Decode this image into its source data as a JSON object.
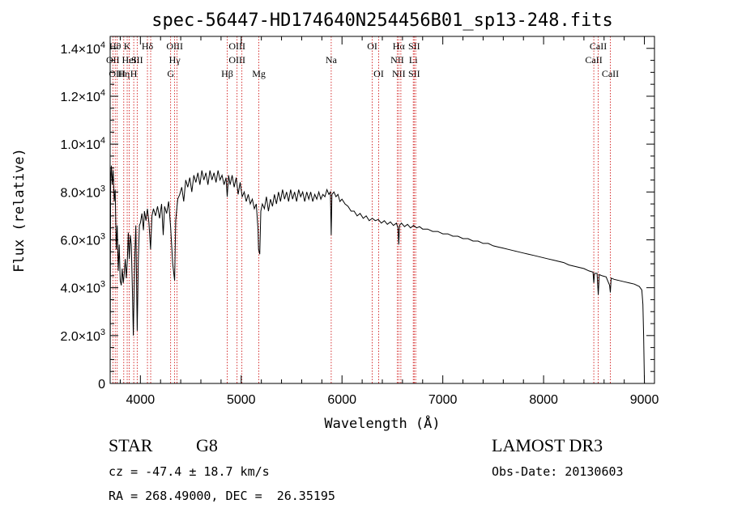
{
  "chart_data": {
    "type": "line",
    "title": "spec-56447-HD174640N254456B01_sp13-248.fits",
    "xlabel": "Wavelength (Å)",
    "ylabel": "Flux (relative)",
    "xlim": [
      3700,
      9100
    ],
    "ylim": [
      0,
      14500
    ],
    "x_ticks": [
      4000,
      5000,
      6000,
      7000,
      8000,
      9000
    ],
    "y_ticks": [
      {
        "value": 0,
        "mantissa": "0",
        "exp": ""
      },
      {
        "value": 2000,
        "mantissa": "2.0×10",
        "exp": "3"
      },
      {
        "value": 4000,
        "mantissa": "4.0×10",
        "exp": "3"
      },
      {
        "value": 6000,
        "mantissa": "6.0×10",
        "exp": "3"
      },
      {
        "value": 8000,
        "mantissa": "8.0×10",
        "exp": "3"
      },
      {
        "value": 10000,
        "mantissa": "1.0×10",
        "exp": "4"
      },
      {
        "value": 12000,
        "mantissa": "1.2×10",
        "exp": "4"
      },
      {
        "value": 14000,
        "mantissa": "1.4×10",
        "exp": "4"
      }
    ],
    "series": [
      {
        "name": "spectrum",
        "points": [
          [
            3700,
            0
          ],
          [
            3705,
            8500
          ],
          [
            3712,
            9100
          ],
          [
            3720,
            8300
          ],
          [
            3730,
            8900
          ],
          [
            3740,
            7600
          ],
          [
            3750,
            8100
          ],
          [
            3760,
            5600
          ],
          [
            3770,
            6600
          ],
          [
            3780,
            4700
          ],
          [
            3790,
            5800
          ],
          [
            3800,
            4300
          ],
          [
            3810,
            4100
          ],
          [
            3820,
            4800
          ],
          [
            3830,
            4200
          ],
          [
            3840,
            4600
          ],
          [
            3850,
            5200
          ],
          [
            3860,
            4400
          ],
          [
            3870,
            5100
          ],
          [
            3880,
            6300
          ],
          [
            3890,
            5200
          ],
          [
            3900,
            6200
          ],
          [
            3910,
            5800
          ],
          [
            3920,
            4000
          ],
          [
            3930,
            2000
          ],
          [
            3945,
            5400
          ],
          [
            3955,
            6600
          ],
          [
            3968,
            2200
          ],
          [
            3980,
            5200
          ],
          [
            3990,
            6600
          ],
          [
            4000,
            6700
          ],
          [
            4015,
            7100
          ],
          [
            4030,
            6400
          ],
          [
            4040,
            7200
          ],
          [
            4055,
            6800
          ],
          [
            4070,
            7300
          ],
          [
            4085,
            6700
          ],
          [
            4101,
            5600
          ],
          [
            4115,
            7000
          ],
          [
            4130,
            7300
          ],
          [
            4150,
            7000
          ],
          [
            4170,
            7400
          ],
          [
            4190,
            6900
          ],
          [
            4210,
            7500
          ],
          [
            4226,
            6200
          ],
          [
            4240,
            7400
          ],
          [
            4260,
            7100
          ],
          [
            4280,
            7600
          ],
          [
            4300,
            6500
          ],
          [
            4320,
            5000
          ],
          [
            4340,
            4300
          ],
          [
            4350,
            6800
          ],
          [
            4370,
            7700
          ],
          [
            4390,
            7900
          ],
          [
            4410,
            8200
          ],
          [
            4430,
            7600
          ],
          [
            4450,
            8500
          ],
          [
            4470,
            8200
          ],
          [
            4490,
            8600
          ],
          [
            4510,
            8000
          ],
          [
            4530,
            8700
          ],
          [
            4550,
            8400
          ],
          [
            4570,
            8800
          ],
          [
            4590,
            8300
          ],
          [
            4610,
            8900
          ],
          [
            4630,
            8500
          ],
          [
            4650,
            8800
          ],
          [
            4670,
            8300
          ],
          [
            4690,
            8900
          ],
          [
            4710,
            8500
          ],
          [
            4730,
            8800
          ],
          [
            4750,
            8400
          ],
          [
            4770,
            8900
          ],
          [
            4790,
            8500
          ],
          [
            4810,
            8700
          ],
          [
            4830,
            8300
          ],
          [
            4850,
            8600
          ],
          [
            4861,
            7800
          ],
          [
            4875,
            8700
          ],
          [
            4890,
            8300
          ],
          [
            4910,
            8700
          ],
          [
            4930,
            8200
          ],
          [
            4950,
            8600
          ],
          [
            4970,
            7900
          ],
          [
            4990,
            8400
          ],
          [
            5010,
            7800
          ],
          [
            5030,
            8000
          ],
          [
            5050,
            7600
          ],
          [
            5070,
            7900
          ],
          [
            5090,
            7500
          ],
          [
            5110,
            7700
          ],
          [
            5130,
            7300
          ],
          [
            5150,
            7500
          ],
          [
            5167,
            6400
          ],
          [
            5172,
            5600
          ],
          [
            5184,
            5400
          ],
          [
            5195,
            7200
          ],
          [
            5210,
            7500
          ],
          [
            5230,
            7300
          ],
          [
            5250,
            7800
          ],
          [
            5270,
            7200
          ],
          [
            5290,
            7700
          ],
          [
            5310,
            7400
          ],
          [
            5330,
            7900
          ],
          [
            5350,
            7500
          ],
          [
            5370,
            8000
          ],
          [
            5390,
            7600
          ],
          [
            5410,
            8100
          ],
          [
            5430,
            7700
          ],
          [
            5450,
            8000
          ],
          [
            5470,
            7600
          ],
          [
            5490,
            8100
          ],
          [
            5510,
            7700
          ],
          [
            5530,
            8000
          ],
          [
            5550,
            7600
          ],
          [
            5570,
            8100
          ],
          [
            5590,
            7800
          ],
          [
            5610,
            8000
          ],
          [
            5630,
            7600
          ],
          [
            5650,
            8000
          ],
          [
            5670,
            7700
          ],
          [
            5690,
            8000
          ],
          [
            5710,
            7600
          ],
          [
            5730,
            7900
          ],
          [
            5750,
            7700
          ],
          [
            5770,
            8000
          ],
          [
            5790,
            7700
          ],
          [
            5810,
            7900
          ],
          [
            5830,
            7800
          ],
          [
            5850,
            8100
          ],
          [
            5870,
            7900
          ],
          [
            5885,
            8000
          ],
          [
            5893,
            6200
          ],
          [
            5900,
            7900
          ],
          [
            5920,
            8000
          ],
          [
            5940,
            7800
          ],
          [
            5960,
            7900
          ],
          [
            5980,
            7600
          ],
          [
            6000,
            7700
          ],
          [
            6030,
            7500
          ],
          [
            6060,
            7400
          ],
          [
            6090,
            7200
          ],
          [
            6120,
            7200
          ],
          [
            6150,
            7000
          ],
          [
            6180,
            7100
          ],
          [
            6210,
            6900
          ],
          [
            6240,
            7000
          ],
          [
            6270,
            6800
          ],
          [
            6300,
            6900
          ],
          [
            6330,
            6800
          ],
          [
            6360,
            6850
          ],
          [
            6390,
            6700
          ],
          [
            6420,
            6800
          ],
          [
            6450,
            6650
          ],
          [
            6480,
            6750
          ],
          [
            6510,
            6600
          ],
          [
            6540,
            6700
          ],
          [
            6555,
            6500
          ],
          [
            6563,
            5800
          ],
          [
            6570,
            6600
          ],
          [
            6590,
            6700
          ],
          [
            6620,
            6550
          ],
          [
            6650,
            6650
          ],
          [
            6680,
            6500
          ],
          [
            6710,
            6600
          ],
          [
            6740,
            6500
          ],
          [
            6770,
            6550
          ],
          [
            6800,
            6450
          ],
          [
            6850,
            6450
          ],
          [
            6900,
            6350
          ],
          [
            6950,
            6350
          ],
          [
            7000,
            6250
          ],
          [
            7050,
            6250
          ],
          [
            7100,
            6150
          ],
          [
            7150,
            6150
          ],
          [
            7200,
            6050
          ],
          [
            7250,
            6050
          ],
          [
            7300,
            5950
          ],
          [
            7350,
            5950
          ],
          [
            7400,
            5850
          ],
          [
            7450,
            5850
          ],
          [
            7500,
            5750
          ],
          [
            7550,
            5700
          ],
          [
            7600,
            5650
          ],
          [
            7650,
            5600
          ],
          [
            7700,
            5550
          ],
          [
            7750,
            5500
          ],
          [
            7800,
            5450
          ],
          [
            7850,
            5400
          ],
          [
            7900,
            5350
          ],
          [
            7950,
            5300
          ],
          [
            8000,
            5250
          ],
          [
            8050,
            5200
          ],
          [
            8100,
            5150
          ],
          [
            8150,
            5100
          ],
          [
            8200,
            5050
          ],
          [
            8250,
            4950
          ],
          [
            8300,
            4900
          ],
          [
            8350,
            4850
          ],
          [
            8400,
            4800
          ],
          [
            8450,
            4700
          ],
          [
            8490,
            4650
          ],
          [
            8498,
            4200
          ],
          [
            8505,
            4600
          ],
          [
            8530,
            4600
          ],
          [
            8542,
            3700
          ],
          [
            8552,
            4550
          ],
          [
            8580,
            4500
          ],
          [
            8620,
            4450
          ],
          [
            8655,
            4100
          ],
          [
            8662,
            3800
          ],
          [
            8670,
            4400
          ],
          [
            8700,
            4350
          ],
          [
            8750,
            4300
          ],
          [
            8800,
            4250
          ],
          [
            8850,
            4200
          ],
          [
            8900,
            4150
          ],
          [
            8950,
            4050
          ],
          [
            8975,
            3900
          ],
          [
            8985,
            3300
          ],
          [
            8992,
            2000
          ],
          [
            8997,
            800
          ],
          [
            9000,
            0
          ]
        ]
      }
    ],
    "lines": [
      {
        "x": 3727,
        "labels": [
          "OII"
        ],
        "rows": [
          1
        ]
      },
      {
        "x": 3750,
        "labels": [
          "Hθ"
        ],
        "rows": [
          0
        ]
      },
      {
        "x": 3770,
        "labels": [
          "OIII"
        ],
        "rows": [
          2
        ]
      },
      {
        "x": 3835,
        "labels": [
          "Hη"
        ],
        "rows": [
          2
        ]
      },
      {
        "x": 3869,
        "labels": [
          "K"
        ],
        "rows": [
          0
        ]
      },
      {
        "x": 3889,
        "labels": [
          "HeI"
        ],
        "rows": [
          1
        ]
      },
      {
        "x": 3934,
        "labels": [
          "H"
        ],
        "rows": [
          2
        ]
      },
      {
        "x": 3968,
        "labels": [
          "SII"
        ],
        "rows": [
          1
        ]
      },
      {
        "x": 4070,
        "labels": [
          "Hδ"
        ],
        "rows": [
          0
        ]
      },
      {
        "x": 4102,
        "labels": [],
        "rows": []
      },
      {
        "x": 4300,
        "labels": [
          "G"
        ],
        "rows": [
          2
        ]
      },
      {
        "x": 4340,
        "labels": [
          "OIII",
          "Hγ"
        ],
        "rows": [
          0,
          1
        ]
      },
      {
        "x": 4363,
        "labels": [],
        "rows": []
      },
      {
        "x": 4861,
        "labels": [
          "Hβ"
        ],
        "rows": [
          2
        ]
      },
      {
        "x": 4959,
        "labels": [
          "OIII",
          "OIII"
        ],
        "rows": [
          0,
          1
        ]
      },
      {
        "x": 5007,
        "labels": [],
        "rows": []
      },
      {
        "x": 5175,
        "labels": [
          "Mg"
        ],
        "rows": [
          2
        ]
      },
      {
        "x": 5893,
        "labels": [
          "Na"
        ],
        "rows": [
          1
        ]
      },
      {
        "x": 6300,
        "labels": [
          "OI"
        ],
        "rows": [
          0
        ]
      },
      {
        "x": 6364,
        "labels": [
          "OI"
        ],
        "rows": [
          2
        ]
      },
      {
        "x": 6548,
        "labels": [
          "NII"
        ],
        "rows": [
          1
        ]
      },
      {
        "x": 6563,
        "labels": [
          "Hα",
          "NII"
        ],
        "rows": [
          0,
          2
        ]
      },
      {
        "x": 6584,
        "labels": [],
        "rows": []
      },
      {
        "x": 6707,
        "labels": [
          "Li"
        ],
        "rows": [
          1
        ]
      },
      {
        "x": 6716,
        "labels": [
          "SII",
          "SII"
        ],
        "rows": [
          0,
          2
        ]
      },
      {
        "x": 6731,
        "labels": [],
        "rows": []
      },
      {
        "x": 8498,
        "labels": [
          "CaII"
        ],
        "rows": [
          1
        ]
      },
      {
        "x": 8542,
        "labels": [
          "CaII"
        ],
        "rows": [
          0
        ]
      },
      {
        "x": 8662,
        "labels": [
          "CaII"
        ],
        "rows": [
          2
        ]
      }
    ]
  },
  "info": {
    "object_class": "STAR",
    "subclass": "G8",
    "survey": "LAMOST DR3",
    "redshift": "cz = -47.4 ± 18.7 km/s",
    "obs_date": "Obs-Date: 20130603",
    "coords": "RA = 268.49000, DEC =  26.35195"
  },
  "colors": {
    "line_marker": "#cc0000",
    "spectrum": "#000000",
    "axis": "#000000"
  }
}
